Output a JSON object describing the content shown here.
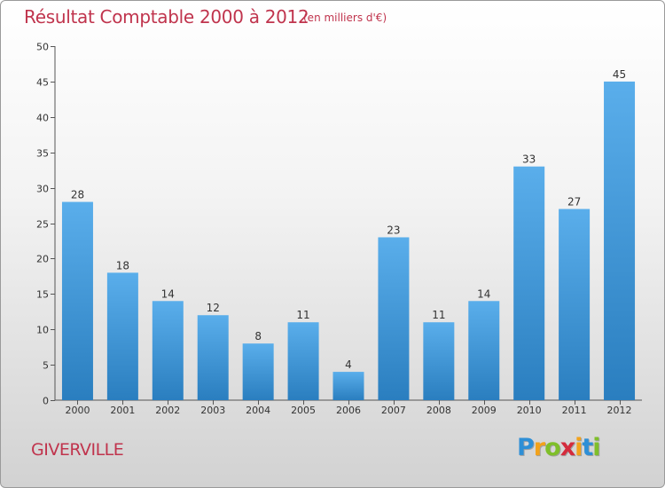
{
  "chart_data": {
    "type": "bar",
    "title": "Résultat Comptable 2000 à 2012",
    "subtitle": "(en milliers d'€)",
    "categories": [
      "2000",
      "2001",
      "2002",
      "2003",
      "2004",
      "2005",
      "2006",
      "2007",
      "2008",
      "2009",
      "2010",
      "2011",
      "2012"
    ],
    "values": [
      28,
      18,
      14,
      12,
      8,
      11,
      4,
      23,
      11,
      14,
      33,
      27,
      45
    ],
    "ylim": [
      0,
      50
    ],
    "yticks": [
      0,
      5,
      10,
      15,
      20,
      25,
      30,
      35,
      40,
      45,
      50
    ],
    "xlabel": "",
    "ylabel": "",
    "grid": false
  },
  "commune": "GIVERVILLE",
  "logo": {
    "letters": [
      "P",
      "r",
      "o",
      "x",
      "i",
      "t",
      "i"
    ],
    "colors": [
      "#2e8fd6",
      "#f2a21b",
      "#7fbf2a",
      "#d42b3c",
      "#f2a21b",
      "#2e8fd6",
      "#7fbf2a"
    ]
  },
  "colors": {
    "bar_top": "#5aaeeb",
    "bar_bottom": "#2a7ebf",
    "title": "#c0344d"
  }
}
